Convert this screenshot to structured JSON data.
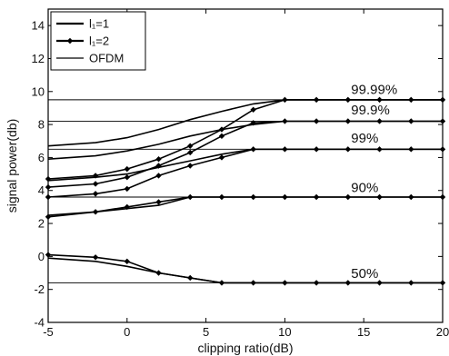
{
  "chart_data": {
    "type": "line",
    "xlabel": "clipping ratio(dB)",
    "ylabel": "signal power(db)",
    "xlim": [
      -5,
      20
    ],
    "ylim": [
      -4,
      15
    ],
    "xticks": [
      -5,
      0,
      5,
      10,
      15,
      20
    ],
    "yticks": [
      -4,
      -2,
      0,
      2,
      4,
      6,
      8,
      10,
      12,
      14
    ],
    "grid": false,
    "legend_position": "top-left",
    "legend": [
      {
        "label": "l₁=1",
        "marker": "none",
        "width": 2
      },
      {
        "label": "l₁=2",
        "marker": "diamond",
        "width": 2
      },
      {
        "label": "OFDM",
        "marker": "none",
        "width": 1
      }
    ],
    "annotations": [
      {
        "text": "99.99%",
        "x": 14.2,
        "y": 9.85
      },
      {
        "text": "99.9%",
        "x": 14.2,
        "y": 8.6
      },
      {
        "text": "99%",
        "x": 14.2,
        "y": 6.9
      },
      {
        "text": "90%",
        "x": 14.2,
        "y": 3.9
      },
      {
        "text": "50%",
        "x": 14.2,
        "y": -1.3
      }
    ],
    "ofdm_levels": [
      9.5,
      8.2,
      6.5,
      3.6,
      -1.6
    ],
    "series": [
      {
        "name": "l₁=1",
        "group": "99.99%",
        "x": [
          -5,
          -2,
          0,
          2,
          4,
          6,
          8,
          10,
          20
        ],
        "y": [
          6.7,
          6.9,
          7.2,
          7.7,
          8.3,
          8.8,
          9.25,
          9.5,
          9.5
        ]
      },
      {
        "name": "l₁=2",
        "group": "99.99%",
        "x": [
          -5,
          -2,
          0,
          2,
          4,
          6,
          8,
          10,
          12,
          14,
          16,
          18,
          20
        ],
        "y": [
          4.7,
          4.9,
          5.3,
          5.9,
          6.7,
          7.7,
          8.9,
          9.5,
          9.5,
          9.5,
          9.5,
          9.5,
          9.5
        ]
      },
      {
        "name": "l₁=1",
        "group": "99.9%",
        "x": [
          -5,
          -2,
          0,
          2,
          4,
          6,
          8,
          10,
          20
        ],
        "y": [
          5.9,
          6.1,
          6.4,
          6.8,
          7.3,
          7.7,
          8.0,
          8.2,
          8.2
        ]
      },
      {
        "name": "l₁=2",
        "group": "99.9%",
        "x": [
          -5,
          -2,
          0,
          2,
          4,
          6,
          8,
          10,
          12,
          14,
          16,
          18,
          20
        ],
        "y": [
          4.2,
          4.4,
          4.8,
          5.5,
          6.3,
          7.3,
          8.1,
          8.2,
          8.2,
          8.2,
          8.2,
          8.2,
          8.2
        ]
      },
      {
        "name": "l₁=1",
        "group": "99%",
        "x": [
          -5,
          -2,
          0,
          2,
          4,
          6,
          8,
          20
        ],
        "y": [
          4.6,
          4.8,
          5.0,
          5.4,
          5.8,
          6.2,
          6.5,
          6.5
        ]
      },
      {
        "name": "l₁=2",
        "group": "99%",
        "x": [
          -5,
          -2,
          0,
          2,
          4,
          6,
          8,
          10,
          12,
          14,
          16,
          18,
          20
        ],
        "y": [
          3.6,
          3.8,
          4.1,
          4.9,
          5.5,
          6.0,
          6.5,
          6.5,
          6.5,
          6.5,
          6.5,
          6.5,
          6.5
        ]
      },
      {
        "name": "l₁=1",
        "group": "90%",
        "x": [
          -5,
          -2,
          0,
          2,
          4,
          20
        ],
        "y": [
          2.5,
          2.7,
          2.9,
          3.1,
          3.6,
          3.6
        ]
      },
      {
        "name": "l₁=2",
        "group": "90%",
        "x": [
          -5,
          -2,
          0,
          2,
          4,
          6,
          8,
          10,
          12,
          14,
          16,
          18,
          20
        ],
        "y": [
          2.4,
          2.7,
          3.0,
          3.3,
          3.6,
          3.6,
          3.6,
          3.6,
          3.6,
          3.6,
          3.6,
          3.6,
          3.6
        ]
      },
      {
        "name": "l₁=1",
        "group": "50%",
        "x": [
          -5,
          -2,
          0,
          2,
          4,
          6,
          20
        ],
        "y": [
          -0.1,
          -0.3,
          -0.6,
          -1.0,
          -1.3,
          -1.6,
          -1.6
        ]
      },
      {
        "name": "l₁=2",
        "group": "50%",
        "x": [
          -5,
          -2,
          0,
          2,
          4,
          6,
          8,
          10,
          12,
          14,
          16,
          18,
          20
        ],
        "y": [
          0.1,
          -0.05,
          -0.3,
          -1.0,
          -1.3,
          -1.6,
          -1.6,
          -1.6,
          -1.6,
          -1.6,
          -1.6,
          -1.6,
          -1.6
        ]
      }
    ]
  }
}
